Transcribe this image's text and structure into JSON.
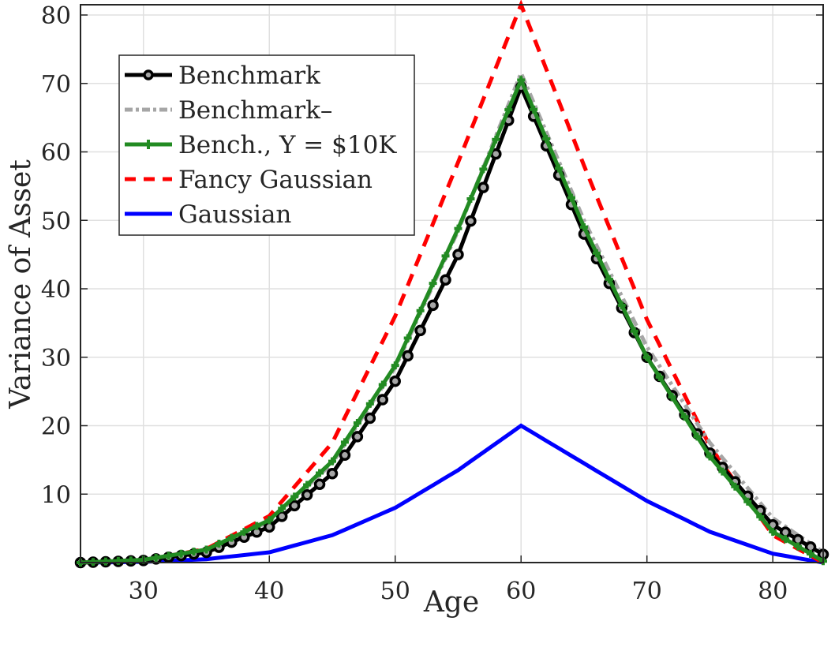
{
  "chart_data": {
    "type": "line",
    "title": "",
    "xlabel": "Age",
    "ylabel": "Variance of Asset",
    "xlim": [
      25,
      84
    ],
    "ylim": [
      0,
      81.5
    ],
    "xticks": [
      30,
      40,
      50,
      60,
      70,
      80
    ],
    "yticks": [
      10,
      20,
      30,
      40,
      50,
      60,
      70,
      80
    ],
    "grid": true,
    "legend_position": "upper left",
    "x": [
      25,
      30,
      35,
      40,
      45,
      50,
      55,
      60,
      65,
      70,
      75,
      80,
      84
    ],
    "series": [
      {
        "name": "Benchmark",
        "color": "#000000",
        "style": "solid-circle-markers",
        "values": [
          0.0,
          0.3,
          1.5,
          5.2,
          13.0,
          26.5,
          45.0,
          69.5,
          48.0,
          30.0,
          16.0,
          5.5,
          1.2
        ]
      },
      {
        "name": "Benchmark–",
        "color": "#a6a6a6",
        "style": "dash-dot",
        "values": [
          0.0,
          0.4,
          1.8,
          6.0,
          14.5,
          28.5,
          48.5,
          71.5,
          50.0,
          31.5,
          17.5,
          6.5,
          1.5
        ]
      },
      {
        "name": "Bench., Y = $10K",
        "color": "#228b22",
        "style": "solid-plus-markers",
        "values": [
          0.0,
          0.4,
          1.9,
          6.2,
          14.8,
          28.8,
          48.8,
          70.5,
          49.0,
          30.0,
          15.5,
          4.5,
          0.2
        ]
      },
      {
        "name": "Fancy Gaussian",
        "color": "#ff0000",
        "style": "dashed",
        "values": [
          0.0,
          0.3,
          2.0,
          6.8,
          17.5,
          36.0,
          58.5,
          81.5,
          58.0,
          35.5,
          17.0,
          4.0,
          0.0
        ]
      },
      {
        "name": "Gaussian",
        "color": "#0000ff",
        "style": "solid",
        "values": [
          0.0,
          0.1,
          0.5,
          1.5,
          4.0,
          8.0,
          13.5,
          20.0,
          14.5,
          9.0,
          4.5,
          1.3,
          0.0
        ]
      }
    ]
  },
  "legend": {
    "items": [
      {
        "label": "Benchmark"
      },
      {
        "label": "Benchmark–"
      },
      {
        "label": "Bench., Y = $10K"
      },
      {
        "label": "Fancy Gaussian"
      },
      {
        "label": "Gaussian"
      }
    ]
  },
  "axes": {
    "x_tick_labels": [
      "30",
      "40",
      "50",
      "60",
      "70",
      "80"
    ],
    "y_tick_labels": [
      "10",
      "20",
      "30",
      "40",
      "50",
      "60",
      "70",
      "80"
    ],
    "xlabel": "Age",
    "ylabel": "Variance of Asset"
  }
}
